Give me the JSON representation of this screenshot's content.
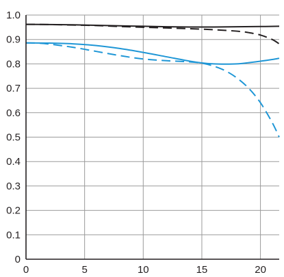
{
  "chart_data": {
    "type": "line",
    "title": "",
    "xlabel": "",
    "ylabel": "",
    "xlim": [
      0,
      21.6
    ],
    "ylim": [
      0,
      1.0
    ],
    "grid": true,
    "legend": "none",
    "x_ticks": [
      "0",
      "5",
      "10",
      "15",
      "20"
    ],
    "y_ticks": [
      "0",
      "0.1",
      "0.2",
      "0.3",
      "0.4",
      "0.5",
      "0.6",
      "0.7",
      "0.8",
      "0.9",
      "1.0"
    ],
    "series": [
      {
        "color": "#231f20",
        "dash": "solid",
        "x": [
          0,
          2,
          4,
          6,
          8,
          10,
          12,
          14,
          16,
          18,
          20,
          21.6
        ],
        "y": [
          0.962,
          0.961,
          0.96,
          0.958,
          0.956,
          0.954,
          0.952,
          0.951,
          0.951,
          0.952,
          0.953,
          0.954
        ]
      },
      {
        "color": "#231f20",
        "dash": "dashed",
        "x": [
          0,
          2,
          4,
          6,
          8,
          10,
          12,
          14,
          16,
          18,
          19,
          20,
          21,
          21.6
        ],
        "y": [
          0.962,
          0.961,
          0.959,
          0.957,
          0.953,
          0.95,
          0.947,
          0.944,
          0.94,
          0.934,
          0.928,
          0.918,
          0.9,
          0.882
        ]
      },
      {
        "color": "#1e96d6",
        "dash": "solid",
        "x": [
          0,
          2,
          4,
          6,
          8,
          10,
          12,
          14,
          15,
          16,
          17,
          18,
          19,
          20,
          21,
          21.6
        ],
        "y": [
          0.886,
          0.885,
          0.882,
          0.875,
          0.863,
          0.847,
          0.829,
          0.811,
          0.804,
          0.8,
          0.799,
          0.8,
          0.805,
          0.811,
          0.818,
          0.823
        ]
      },
      {
        "color": "#1e96d6",
        "dash": "dashed",
        "x": [
          0,
          1,
          2,
          4,
          6,
          8,
          10,
          12,
          14,
          15,
          16,
          17,
          18,
          19,
          20,
          21,
          21.6
        ],
        "y": [
          0.886,
          0.885,
          0.881,
          0.868,
          0.851,
          0.834,
          0.82,
          0.813,
          0.808,
          0.803,
          0.791,
          0.772,
          0.742,
          0.7,
          0.641,
          0.56,
          0.5
        ]
      }
    ]
  }
}
